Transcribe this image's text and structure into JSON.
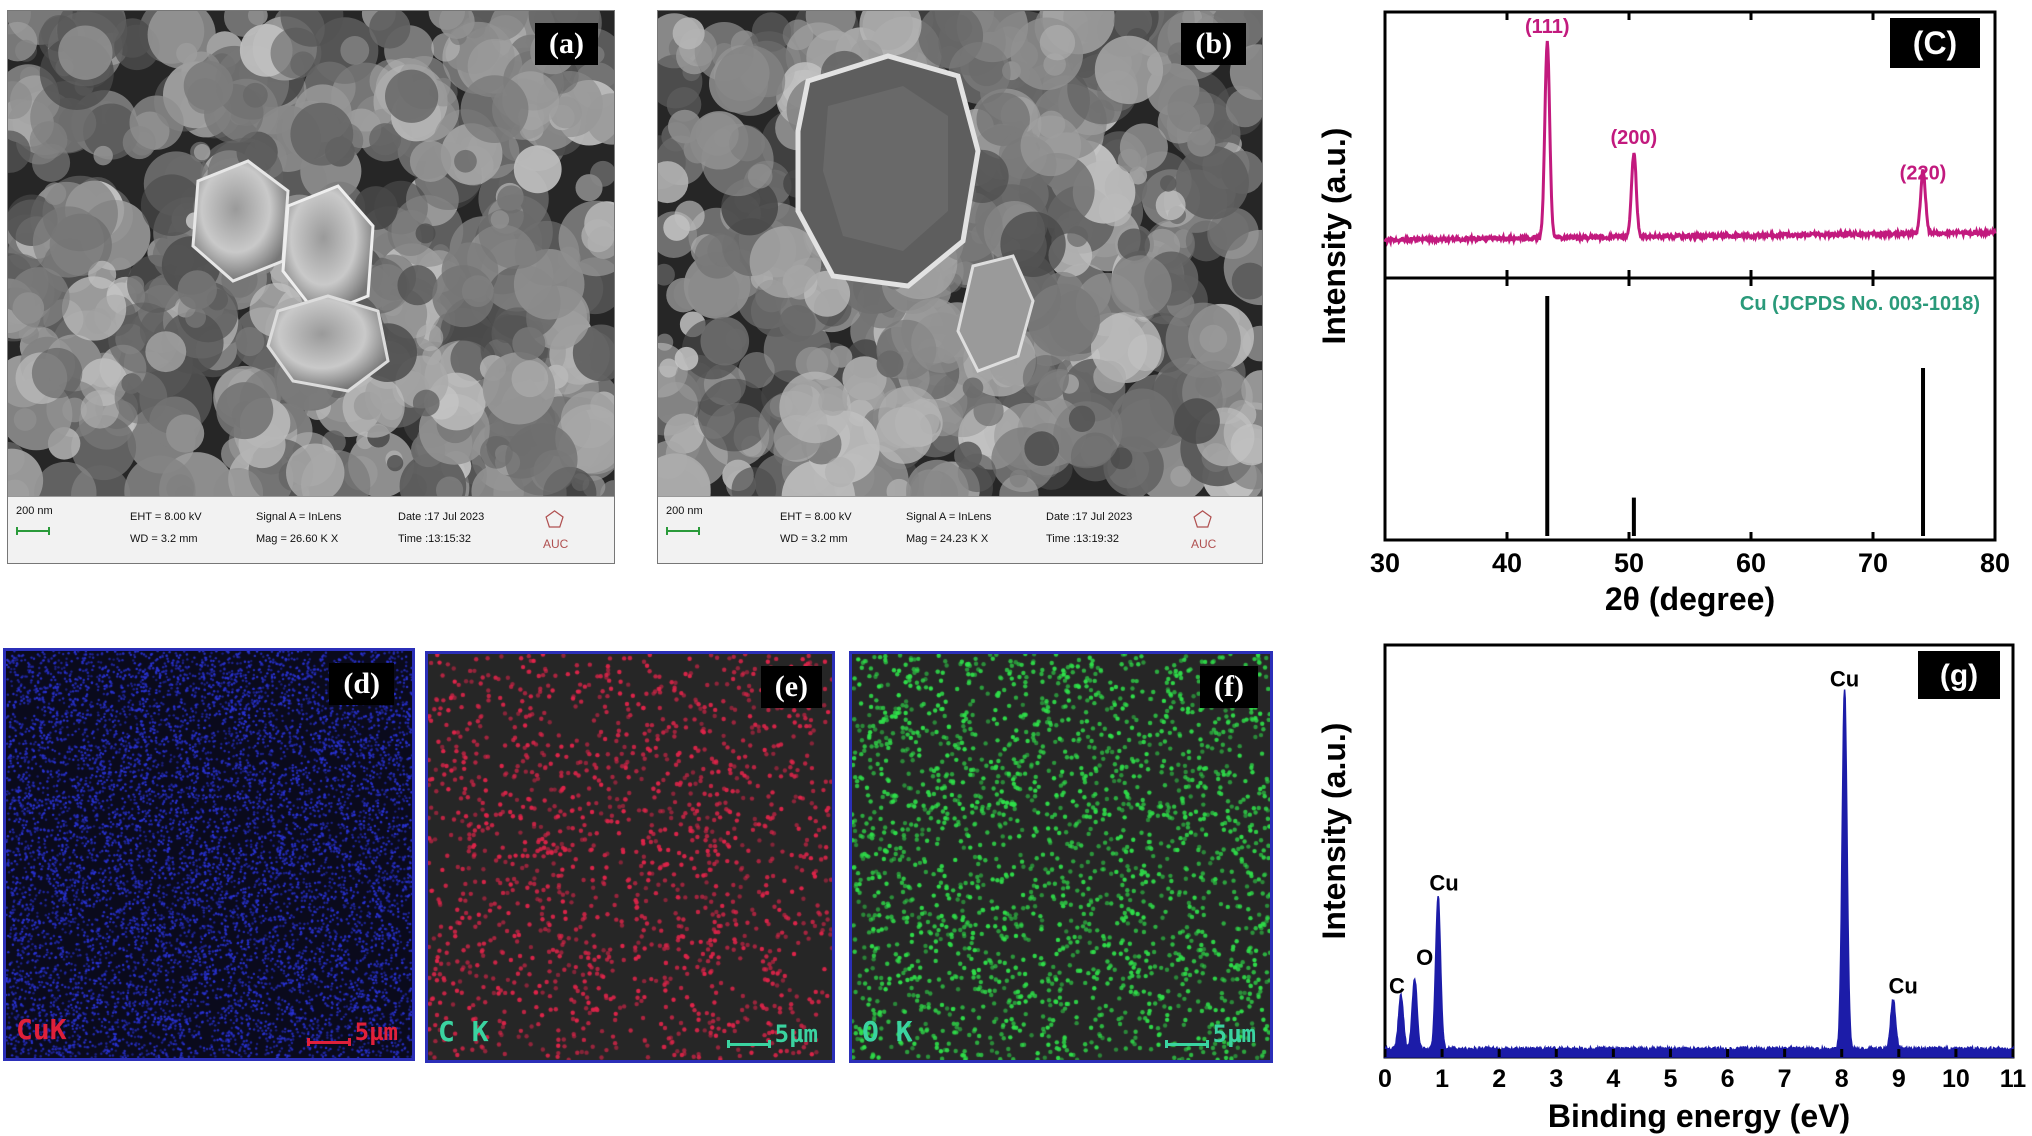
{
  "figure": {
    "panels": {
      "a": {
        "label": "(a)",
        "scale_text": "200 nm",
        "eht": "EHT = 8.00 kV",
        "wd": "WD = 3.2 mm",
        "signal": "Signal A = InLens",
        "mag": "Mag = 26.60 K X",
        "date": "Date :17 Jul 2023",
        "time": "Time :13:15:32",
        "logo": "AUC"
      },
      "b": {
        "label": "(b)",
        "scale_text": "200 nm",
        "eht": "EHT = 8.00 kV",
        "wd": "WD = 3.2 mm",
        "signal": "Signal A = InLens",
        "mag": "Mag = 24.23 K X",
        "date": "Date :17 Jul 2023",
        "time": "Time :13:19:32",
        "logo": "AUC"
      },
      "d": {
        "label": "(d)",
        "element": "CuK",
        "scale_text": "5µm",
        "dot_color": "#2a33d8",
        "label_color": "#e0203a"
      },
      "e": {
        "label": "(e)",
        "element": "C K",
        "scale_text": "5µm",
        "dot_color": "#e0244a",
        "label_color": "#3ad3a0"
      },
      "f": {
        "label": "(f)",
        "element": "O K",
        "scale_text": "5µm",
        "dot_color": "#2fe04a",
        "label_color": "#3ad3a0"
      }
    }
  },
  "chart_data": [
    {
      "panel_label": "(C)",
      "type": "line",
      "xlabel": "2θ (degree)",
      "ylabel": "Intensity (a.u.)",
      "xlim": [
        30,
        80
      ],
      "x_ticks": [
        30,
        40,
        50,
        60,
        70,
        80
      ],
      "series_color": "#c21a7e",
      "peaks": [
        {
          "x": 43.3,
          "height": 1.0,
          "label": "(111)"
        },
        {
          "x": 50.4,
          "height": 0.43,
          "label": "(200)"
        },
        {
          "x": 74.1,
          "height": 0.32,
          "label": "(220)"
        }
      ],
      "reference": {
        "label": "Cu (JCPDS No. 003-1018)",
        "label_color": "#2a9a7a",
        "lines": [
          {
            "x": 43.3,
            "height": 1.0
          },
          {
            "x": 50.4,
            "height": 0.16
          },
          {
            "x": 74.1,
            "height": 0.7
          }
        ]
      }
    },
    {
      "panel_label": "(g)",
      "type": "area",
      "xlabel": "Binding energy (eV)",
      "ylabel": "Intensity (a.u.)",
      "xlim": [
        0,
        11
      ],
      "x_ticks": [
        0,
        1,
        2,
        3,
        4,
        5,
        6,
        7,
        8,
        9,
        10,
        11
      ],
      "series_color": "#1c1ca8",
      "peaks": [
        {
          "x": 0.28,
          "height": 0.13,
          "label": "C"
        },
        {
          "x": 0.52,
          "height": 0.17,
          "label": "O"
        },
        {
          "x": 0.93,
          "height": 0.37,
          "label": "Cu"
        },
        {
          "x": 8.05,
          "height": 0.87,
          "label": "Cu"
        },
        {
          "x": 8.9,
          "height": 0.12,
          "label": "Cu"
        }
      ]
    }
  ]
}
